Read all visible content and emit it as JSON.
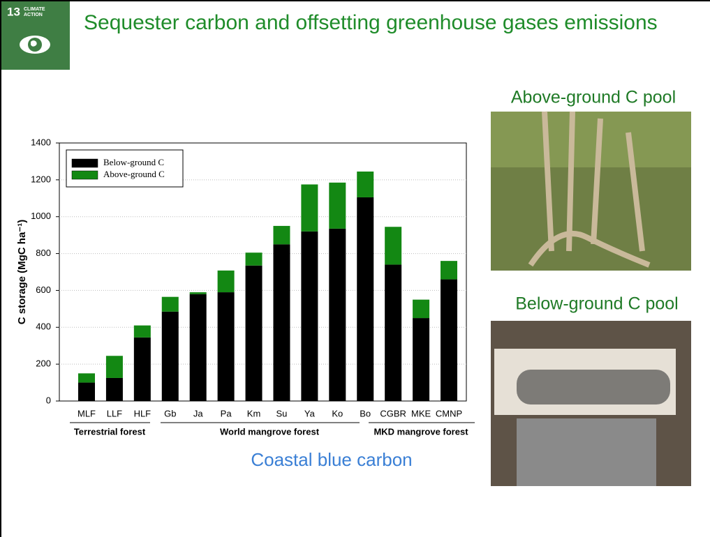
{
  "badge": {
    "number": "13",
    "label": "CLIMATE ACTION"
  },
  "header": {
    "title": "Sequester carbon and offsetting greenhouse gases emissions"
  },
  "photos": [
    {
      "caption": "Above-ground C pool"
    },
    {
      "caption": "Below-ground C pool"
    }
  ],
  "chart_data": {
    "type": "stacked-bar",
    "subtitle": "Coastal blue carbon",
    "y_label": "C storage (MgC ha⁻¹)",
    "categories": [
      "MLF",
      "LLF",
      "HLF",
      "Gb",
      "Ja",
      "Pa",
      "Km",
      "Su",
      "Ya",
      "Ko",
      "Bo",
      "CGBR",
      "MKE",
      "CMNP"
    ],
    "series": [
      {
        "name": "Below-ground C",
        "color": "#000000",
        "values": [
          100,
          125,
          345,
          485,
          580,
          590,
          735,
          850,
          920,
          935,
          1105,
          740,
          450,
          660
        ]
      },
      {
        "name": "Above-ground C",
        "color": "#138813",
        "values": [
          50,
          120,
          65,
          80,
          10,
          118,
          70,
          100,
          255,
          250,
          140,
          205,
          100,
          100
        ]
      }
    ],
    "groups": [
      "Terrestrial forest",
      "World mangrove forest",
      "MKD mangrove forest"
    ],
    "ylim": [
      0,
      1400
    ],
    "yticks": [
      0,
      200,
      400,
      600,
      800,
      1000,
      1200,
      1400
    ],
    "grid": true,
    "legend": "top-left"
  }
}
